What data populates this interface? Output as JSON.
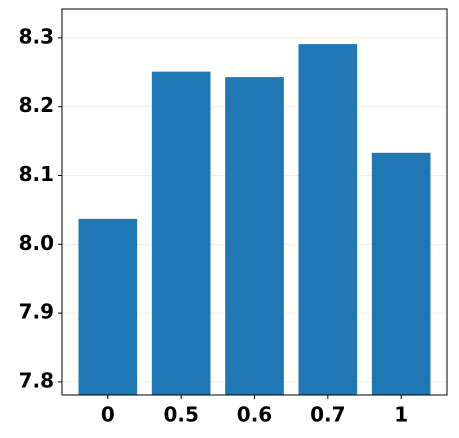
{
  "chart_data": {
    "type": "bar",
    "categories": [
      "0",
      "0.5",
      "0.6",
      "0.7",
      "1"
    ],
    "values": [
      8.037,
      8.251,
      8.243,
      8.291,
      8.133
    ],
    "color": "#1f77b4",
    "ylim": [
      7.781,
      8.342
    ],
    "yticks": [
      7.8,
      7.9,
      {
        "value": 8,
        "label": "8.0"
      },
      8.1,
      8.2,
      8.3
    ],
    "grid": true
  }
}
